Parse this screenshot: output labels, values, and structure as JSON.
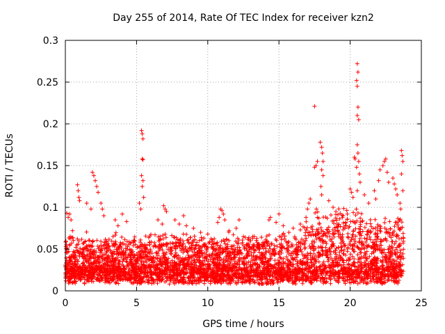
{
  "chart_data": {
    "type": "scatter",
    "title": "Day 255 of 2014, Rate Of TEC Index for receiver kzn2",
    "xlabel": "GPS time / hours",
    "ylabel": "ROTI / TECUs",
    "xlim": [
      0,
      25
    ],
    "ylim": [
      0,
      0.3
    ],
    "xticks": [
      "0",
      "5",
      "10",
      "15",
      "20",
      "25"
    ],
    "yticks": [
      "0",
      "0.05",
      "0.1",
      "0.15",
      "0.2",
      "0.25",
      "0.3"
    ],
    "grid": true,
    "marker": "plus",
    "color": "#ff0000",
    "series": [
      {
        "points": [
          [
            0.1,
            0.093
          ],
          [
            0.2,
            0.088
          ],
          [
            0.3,
            0.092
          ],
          [
            0.4,
            0.085
          ],
          [
            0.5,
            0.072
          ],
          [
            0.85,
            0.127
          ],
          [
            0.9,
            0.12
          ],
          [
            0.95,
            0.112
          ],
          [
            1.0,
            0.108
          ],
          [
            1.5,
            0.105
          ],
          [
            1.8,
            0.098
          ],
          [
            1.9,
            0.142
          ],
          [
            2.0,
            0.138
          ],
          [
            2.1,
            0.132
          ],
          [
            2.2,
            0.125
          ],
          [
            2.3,
            0.118
          ],
          [
            2.5,
            0.105
          ],
          [
            2.6,
            0.098
          ],
          [
            2.7,
            0.09
          ],
          [
            3.5,
            0.085
          ],
          [
            3.7,
            0.078
          ],
          [
            4.0,
            0.092
          ],
          [
            4.3,
            0.083
          ],
          [
            5.2,
            0.105
          ],
          [
            5.3,
            0.098
          ],
          [
            5.35,
            0.192
          ],
          [
            5.4,
            0.188
          ],
          [
            5.45,
            0.182
          ],
          [
            5.4,
            0.158
          ],
          [
            5.45,
            0.157
          ],
          [
            5.35,
            0.138
          ],
          [
            5.45,
            0.132
          ],
          [
            5.4,
            0.125
          ],
          [
            5.5,
            0.112
          ],
          [
            6.5,
            0.085
          ],
          [
            6.8,
            0.08
          ],
          [
            6.9,
            0.102
          ],
          [
            7.0,
            0.098
          ],
          [
            7.1,
            0.095
          ],
          [
            7.7,
            0.085
          ],
          [
            8.0,
            0.08
          ],
          [
            8.3,
            0.09
          ],
          [
            8.5,
            0.078
          ],
          [
            9.0,
            0.075
          ],
          [
            9.5,
            0.07
          ],
          [
            10.0,
            0.068
          ],
          [
            10.7,
            0.082
          ],
          [
            10.8,
            0.088
          ],
          [
            10.9,
            0.098
          ],
          [
            11.0,
            0.096
          ],
          [
            11.1,
            0.092
          ],
          [
            11.2,
            0.085
          ],
          [
            11.5,
            0.072
          ],
          [
            12.0,
            0.075
          ],
          [
            12.2,
            0.085
          ],
          [
            12.5,
            0.065
          ],
          [
            13.0,
            0.06
          ],
          [
            13.5,
            0.055
          ],
          [
            14.0,
            0.058
          ],
          [
            14.3,
            0.085
          ],
          [
            14.4,
            0.088
          ],
          [
            14.8,
            0.082
          ],
          [
            15.0,
            0.092
          ],
          [
            15.3,
            0.078
          ],
          [
            15.7,
            0.07
          ],
          [
            16.0,
            0.075
          ],
          [
            16.5,
            0.08
          ],
          [
            16.9,
            0.088
          ],
          [
            17.0,
            0.098
          ],
          [
            17.1,
            0.105
          ],
          [
            17.2,
            0.11
          ],
          [
            17.5,
            0.221
          ],
          [
            17.5,
            0.148
          ],
          [
            17.6,
            0.15
          ],
          [
            17.7,
            0.155
          ],
          [
            17.9,
            0.178
          ],
          [
            18.0,
            0.172
          ],
          [
            18.05,
            0.165
          ],
          [
            18.1,
            0.155
          ],
          [
            18.0,
            0.145
          ],
          [
            18.1,
            0.138
          ],
          [
            17.95,
            0.125
          ],
          [
            18.0,
            0.115
          ],
          [
            18.5,
            0.108
          ],
          [
            18.8,
            0.1
          ],
          [
            19.0,
            0.095
          ],
          [
            19.5,
            0.09
          ],
          [
            19.8,
            0.092
          ],
          [
            20.0,
            0.122
          ],
          [
            20.1,
            0.118
          ],
          [
            20.2,
            0.112
          ],
          [
            20.3,
            0.16
          ],
          [
            20.35,
            0.158
          ],
          [
            20.5,
            0.272
          ],
          [
            20.55,
            0.262
          ],
          [
            20.45,
            0.252
          ],
          [
            20.5,
            0.245
          ],
          [
            20.55,
            0.22
          ],
          [
            20.5,
            0.21
          ],
          [
            20.6,
            0.205
          ],
          [
            20.5,
            0.175
          ],
          [
            20.55,
            0.165
          ],
          [
            20.6,
            0.155
          ],
          [
            20.45,
            0.148
          ],
          [
            20.65,
            0.14
          ],
          [
            20.7,
            0.13
          ],
          [
            20.5,
            0.12
          ],
          [
            21.0,
            0.115
          ],
          [
            21.3,
            0.105
          ],
          [
            21.7,
            0.12
          ],
          [
            21.8,
            0.11
          ],
          [
            22.0,
            0.132
          ],
          [
            22.1,
            0.145
          ],
          [
            22.3,
            0.15
          ],
          [
            22.4,
            0.155
          ],
          [
            22.5,
            0.158
          ],
          [
            22.6,
            0.142
          ],
          [
            22.7,
            0.13
          ],
          [
            23.0,
            0.135
          ],
          [
            23.1,
            0.128
          ],
          [
            23.2,
            0.122
          ],
          [
            23.3,
            0.115
          ],
          [
            23.5,
            0.105
          ],
          [
            23.55,
            0.098
          ],
          [
            23.6,
            0.168
          ],
          [
            23.65,
            0.162
          ],
          [
            23.7,
            0.155
          ],
          [
            23.6,
            0.14
          ],
          [
            23.7,
            0.12
          ]
        ]
      }
    ]
  }
}
